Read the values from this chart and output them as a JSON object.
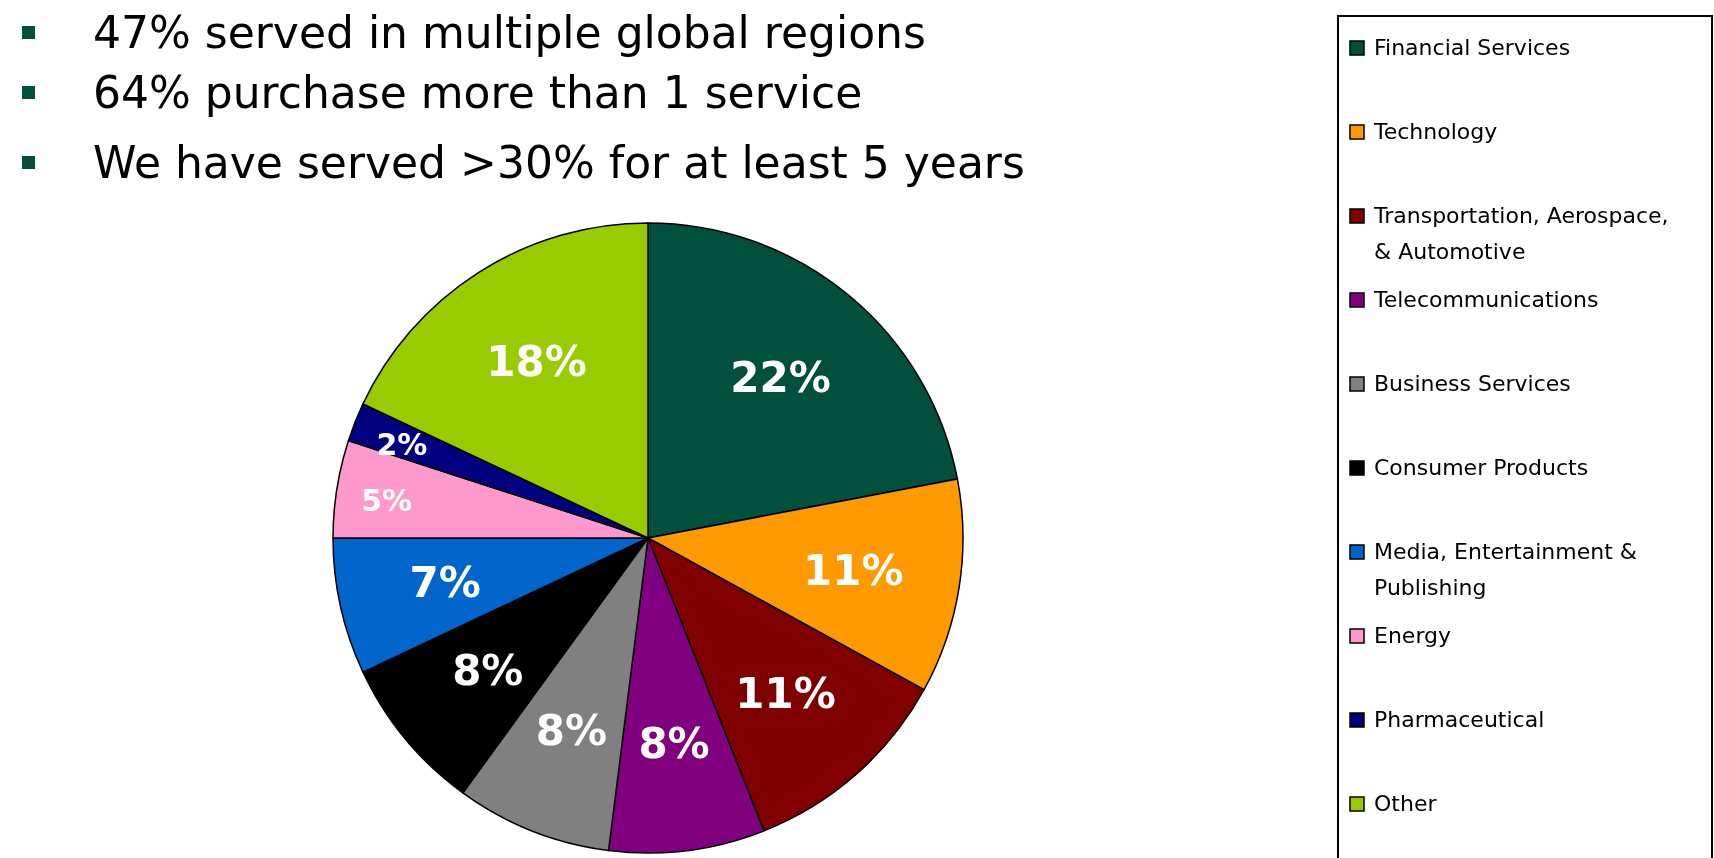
{
  "chart_data": {
    "type": "pie",
    "annotations": [
      "47% served in multiple global regions",
      "64% purchase more than 1 service",
      "We have served >30% for at least 5 years"
    ],
    "categories": [
      "Financial Services",
      "Technology",
      "Transportation, Aerospace, & Automotive",
      "Telecommunications",
      "Business Services",
      "Consumer Products",
      "Media, Entertainment & Publishing",
      "Energy",
      "Pharmaceutical",
      "Other"
    ],
    "values": [
      22,
      11,
      11,
      8,
      8,
      8,
      7,
      5,
      2,
      18
    ],
    "colors": [
      "#00503c",
      "#ff9900",
      "#800000",
      "#800080",
      "#808080",
      "#000000",
      "#0066cc",
      "#ff99cc",
      "#000080",
      "#99cc00"
    ],
    "value_labels": [
      "22%",
      "11%",
      "11%",
      "8%",
      "8%",
      "8%",
      "7%",
      "5%",
      "2%",
      "18%"
    ],
    "legend": "right"
  }
}
